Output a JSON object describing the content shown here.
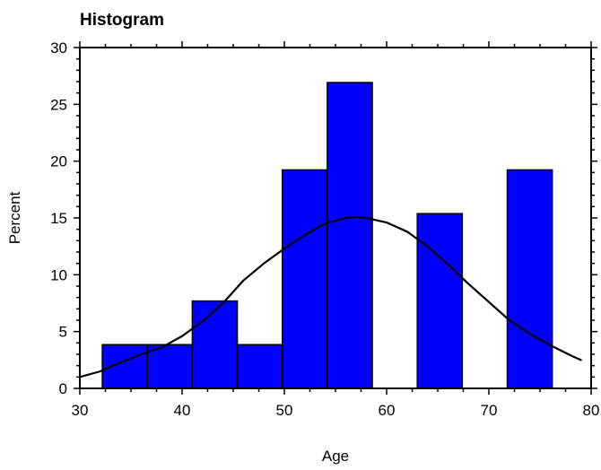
{
  "chart_data": {
    "type": "bar",
    "title": "Histogram",
    "xlabel": "Age",
    "ylabel": "Percent",
    "xlim": [
      30,
      80
    ],
    "ylim": [
      0,
      30
    ],
    "x_ticks": [
      30,
      40,
      50,
      60,
      70,
      80
    ],
    "y_ticks": [
      0,
      5,
      10,
      15,
      20,
      25,
      30
    ],
    "bar_color": "#0000ff",
    "bins": [
      {
        "start": 32.2,
        "end": 36.6,
        "value": 3.85
      },
      {
        "start": 36.6,
        "end": 41.0,
        "value": 3.85
      },
      {
        "start": 41.0,
        "end": 45.4,
        "value": 7.69
      },
      {
        "start": 45.4,
        "end": 49.8,
        "value": 3.85
      },
      {
        "start": 49.8,
        "end": 54.2,
        "value": 19.23
      },
      {
        "start": 54.2,
        "end": 58.6,
        "value": 26.92
      },
      {
        "start": 63.0,
        "end": 67.4,
        "value": 15.38
      },
      {
        "start": 71.8,
        "end": 76.2,
        "value": 19.23
      }
    ],
    "density_curve": {
      "x": [
        30,
        32,
        34,
        36,
        38,
        40,
        42,
        44,
        46,
        48,
        50,
        52,
        54,
        56,
        57,
        58,
        60,
        62,
        64,
        66,
        68,
        70,
        72,
        74,
        76,
        78,
        79
      ],
      "y": [
        1.0,
        1.5,
        2.3,
        3.0,
        3.6,
        4.6,
        5.9,
        7.5,
        9.5,
        11.0,
        12.3,
        13.5,
        14.5,
        15.0,
        15.1,
        15.0,
        14.6,
        13.8,
        12.5,
        10.9,
        9.2,
        7.6,
        6.0,
        4.8,
        3.8,
        2.9,
        2.5
      ]
    },
    "grid": false
  }
}
